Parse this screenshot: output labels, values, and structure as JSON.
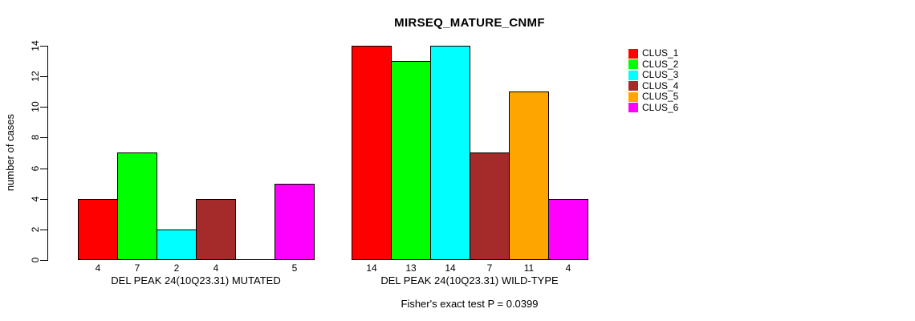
{
  "chart_data": {
    "type": "bar",
    "title": "MIRSEQ_MATURE_CNMF",
    "ylabel": "number of cases",
    "xlabel": "",
    "ylim": [
      0,
      14
    ],
    "yticks": [
      0,
      2,
      4,
      6,
      8,
      10,
      12,
      14
    ],
    "grid": false,
    "legend_position": "top-right",
    "legend": [
      {
        "label": "CLUS_1",
        "color": "#FF0000"
      },
      {
        "label": "CLUS_2",
        "color": "#00FF00"
      },
      {
        "label": "CLUS_3",
        "color": "#00FFFF"
      },
      {
        "label": "CLUS_4",
        "color": "#A52A2A"
      },
      {
        "label": "CLUS_5",
        "color": "#FFA500"
      },
      {
        "label": "CLUS_6",
        "color": "#FF00FF"
      }
    ],
    "groups": [
      {
        "label": "DEL PEAK 24(10Q23.31) MUTATED",
        "values": [
          4,
          7,
          2,
          4,
          0,
          5
        ]
      },
      {
        "label": "DEL PEAK 24(10Q23.31) WILD-TYPE",
        "values": [
          14,
          13,
          14,
          7,
          11,
          4
        ]
      }
    ],
    "bar_value_labels_shown": [
      "4",
      "7",
      "2",
      "4",
      "",
      "5",
      "14",
      "13",
      "14",
      "7",
      "11",
      "4"
    ],
    "caption": "Fisher's exact test P = 0.0399",
    "axis_color": "#000000",
    "background_color": "#FFFFFF"
  }
}
